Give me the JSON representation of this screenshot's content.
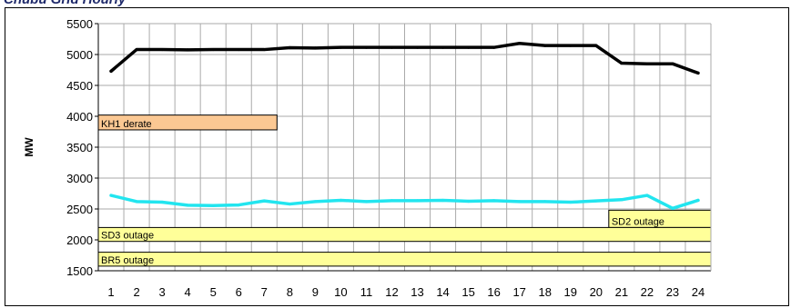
{
  "chart_data": {
    "type": "line",
    "title": "",
    "xlabel": "",
    "ylabel": "MW",
    "x": [
      1,
      2,
      3,
      4,
      5,
      6,
      7,
      8,
      9,
      10,
      11,
      12,
      13,
      14,
      15,
      16,
      17,
      18,
      19,
      20,
      21,
      22,
      23,
      24
    ],
    "ylim": [
      1500,
      5500
    ],
    "yticks": [
      1500,
      2000,
      2500,
      3000,
      3500,
      4000,
      4500,
      5000,
      5500
    ],
    "grid": true,
    "legend": "none",
    "series": [
      {
        "color": "#000000",
        "values": [
          4730,
          5080,
          5080,
          5075,
          5080,
          5080,
          5080,
          5110,
          5105,
          5115,
          5115,
          5115,
          5115,
          5115,
          5115,
          5115,
          5180,
          5145,
          5145,
          5145,
          4860,
          4850,
          4850,
          4700
        ]
      },
      {
        "color": "#22e5ef",
        "values": [
          2720,
          2620,
          2610,
          2560,
          2555,
          2565,
          2630,
          2580,
          2620,
          2640,
          2620,
          2635,
          2635,
          2640,
          2625,
          2635,
          2620,
          2620,
          2610,
          2630,
          2650,
          2720,
          2510,
          2640
        ]
      }
    ],
    "annotations": [
      {
        "label": "KH1 derate",
        "x_start": 0.5,
        "x_end": 7.5,
        "y_low": 3780,
        "y_high": 4020,
        "color": "#fbc893"
      },
      {
        "label": "SD2  outage",
        "x_start": 20.5,
        "x_end": 24.5,
        "y_low": 2200,
        "y_high": 2480,
        "color": "#ffff99"
      },
      {
        "label": "SD3  outage",
        "x_start": 0.5,
        "x_end": 24.5,
        "y_low": 1975,
        "y_high": 2200,
        "color": "#ffff99"
      },
      {
        "label": "BR5 outage",
        "x_start": 0.5,
        "x_end": 24.5,
        "y_low": 1575,
        "y_high": 1800,
        "color": "#ffff99"
      }
    ]
  }
}
